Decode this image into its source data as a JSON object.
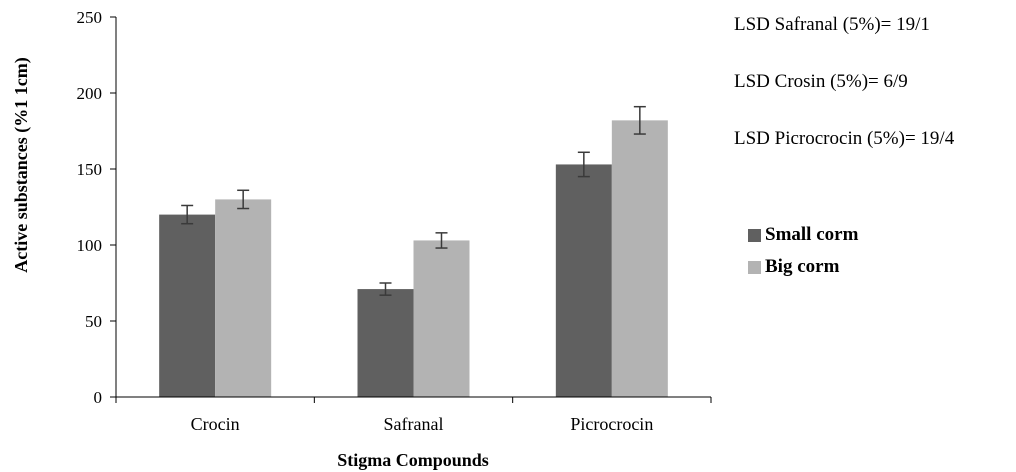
{
  "chart_data": {
    "type": "bar",
    "categories": [
      "Crocin",
      "Safranal",
      "Picrocrocin"
    ],
    "series": [
      {
        "name": "Small corm",
        "values": [
          120,
          71,
          153
        ],
        "errors": [
          6,
          4,
          8
        ],
        "color": "#606060"
      },
      {
        "name": "Big corm",
        "values": [
          130,
          103,
          182
        ],
        "errors": [
          6,
          5,
          9
        ],
        "color": "#b3b3b3"
      }
    ],
    "xlabel": "Stigma Compounds",
    "ylabel": "Active substances (%1 1cm)",
    "ylim": [
      0,
      250
    ],
    "yticks": [
      "0",
      "50",
      "100",
      "150",
      "200",
      "250"
    ],
    "grid": false,
    "legend_position": "right",
    "annotations": [
      "LSD Safranal (5%)= 19/1",
      "LSD Crosin (5%)= 6/9",
      "LSD Picrocrocin (5%)= 19/4"
    ]
  }
}
